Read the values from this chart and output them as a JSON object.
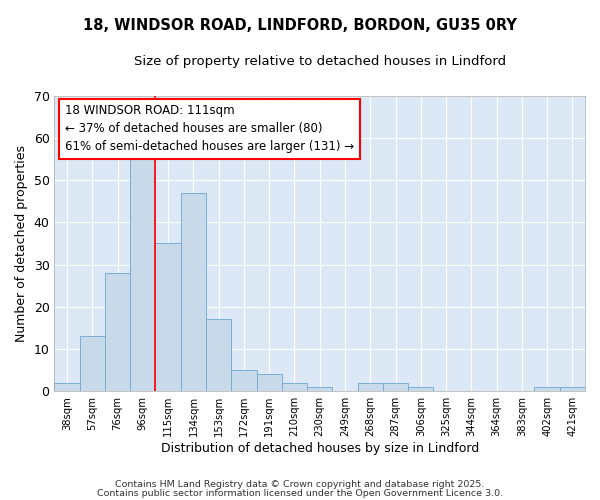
{
  "title_line1": "18, WINDSOR ROAD, LINDFORD, BORDON, GU35 0RY",
  "title_line2": "Size of property relative to detached houses in Lindford",
  "xlabel": "Distribution of detached houses by size in Lindford",
  "ylabel": "Number of detached properties",
  "bin_labels": [
    "38sqm",
    "57sqm",
    "76sqm",
    "96sqm",
    "115sqm",
    "134sqm",
    "153sqm",
    "172sqm",
    "191sqm",
    "210sqm",
    "230sqm",
    "249sqm",
    "268sqm",
    "287sqm",
    "306sqm",
    "325sqm",
    "344sqm",
    "364sqm",
    "383sqm",
    "402sqm",
    "421sqm"
  ],
  "bar_heights": [
    2,
    13,
    28,
    55,
    35,
    47,
    17,
    5,
    4,
    2,
    1,
    0,
    2,
    2,
    1,
    0,
    0,
    0,
    0,
    1,
    1
  ],
  "ylim": [
    0,
    70
  ],
  "yticks": [
    0,
    10,
    20,
    30,
    40,
    50,
    60,
    70
  ],
  "bar_color": "#c8d9ea",
  "bar_edgecolor": "#7aaed6",
  "background_color": "#dce8f5",
  "fig_background": "#ffffff",
  "grid_color": "#ffffff",
  "red_line_bin_index": 4,
  "annotation_text_line1": "18 WINDSOR ROAD: 111sqm",
  "annotation_text_line2": "← 37% of detached houses are smaller (80)",
  "annotation_text_line3": "61% of semi-detached houses are larger (131) →",
  "footer_line1": "Contains HM Land Registry data © Crown copyright and database right 2025.",
  "footer_line2": "Contains public sector information licensed under the Open Government Licence 3.0."
}
